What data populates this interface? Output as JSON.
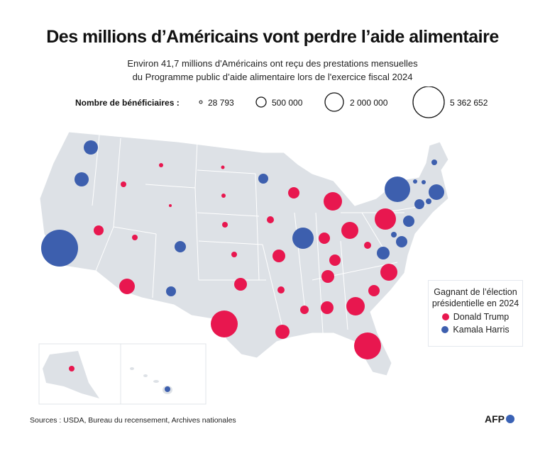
{
  "title": "Des millions d’Américains vont perdre l’aide alimentaire",
  "subtitle_line1": "Environ 41,7 millions d'Américains ont reçu des prestations mensuelles",
  "subtitle_line2": "du Programme public d’aide alimentaire lors de l'exercice fiscal 2024",
  "size_legend": {
    "label": "Nombre de bénéficiaires :",
    "items": [
      "28 793",
      "500 000",
      "2 000 000",
      "5 362 652"
    ]
  },
  "party_legend": {
    "title_line1": "Gagnant de l’élection",
    "title_line2": "présidentielle en 2024",
    "trump": "Donald Trump",
    "harris": "Kamala Harris"
  },
  "colors": {
    "trump": "#e8174f",
    "harris": "#3d5fae",
    "land": "#dde1e6"
  },
  "footer": {
    "sources": "Sources : USDA, Bureau du recensement, Archives nationales",
    "logo": "AFP"
  }
}
